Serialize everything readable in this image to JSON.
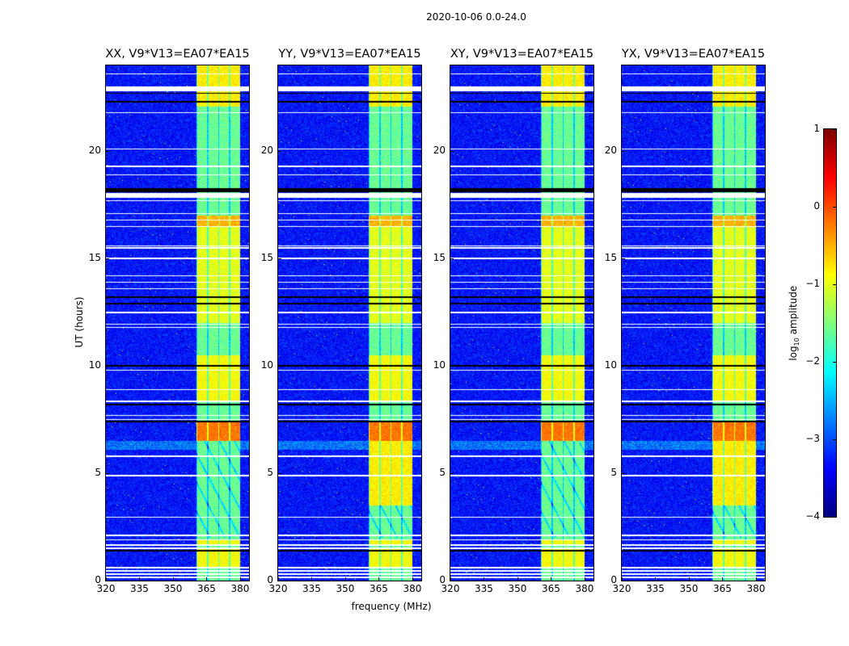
{
  "figure": {
    "suptitle": "2020-10-06 0.0-24.0",
    "xlabel": "frequency (MHz)",
    "ylabel": "UT (hours)",
    "colorbar_label_main": "log",
    "colorbar_label_sub": "10",
    "colorbar_label_rest": " amplitude"
  },
  "chart_data": {
    "type": "heatmap",
    "title": "2020-10-06 0.0-24.0",
    "xlabel": "frequency (MHz)",
    "ylabel": "UT (hours)",
    "xlim": [
      320,
      384
    ],
    "ylim": [
      0,
      24
    ],
    "xticks": [
      "320",
      "335",
      "350",
      "365",
      "380"
    ],
    "xtick_values": [
      320,
      335,
      350,
      365,
      380
    ],
    "yticks": [
      "0",
      "5",
      "10",
      "15",
      "20"
    ],
    "ytick_values": [
      0,
      5,
      10,
      15,
      20
    ],
    "colormap": "jet",
    "colorbar": {
      "label": "log10 amplitude",
      "range": [
        -4,
        1
      ],
      "ticks": [
        "−4",
        "−3",
        "−2",
        "−1",
        "0",
        "1"
      ],
      "tick_values": [
        -4,
        -3,
        -2,
        -1,
        0,
        1
      ]
    },
    "panels": [
      {
        "title": "XX, V9*V13=EA07*EA15",
        "pol": "XX"
      },
      {
        "title": "YY, V9*V13=EA07*EA15",
        "pol": "YY"
      },
      {
        "title": "XY, V9*V13=EA07*EA15",
        "pol": "XY"
      },
      {
        "title": "YX, V9*V13=EA07*EA15",
        "pol": "YX"
      }
    ],
    "background_level": -3.3,
    "band": {
      "freq_range_mhz": [
        360.5,
        380
      ],
      "subbands": 4,
      "level": -1.6
    },
    "band_bright_intervals_ut": [
      [
        0.6,
        1.5,
        -0.9
      ],
      [
        1.65,
        1.9,
        -0.9
      ],
      [
        6.5,
        7.4,
        -0.2
      ],
      [
        8.4,
        10.5,
        -0.9
      ],
      [
        12.0,
        16.5,
        -1.0
      ],
      [
        16.5,
        17.0,
        -0.5
      ],
      [
        22.1,
        24.0,
        -0.8
      ]
    ],
    "flagged_rows_ut": [
      0.15,
      0.3,
      0.45,
      0.6,
      1.5,
      1.65,
      1.9,
      2.1,
      2.95,
      4.9,
      5.8,
      7.5,
      7.7,
      8.35,
      8.9,
      9.8,
      11.8,
      11.95,
      12.5,
      13.6,
      13.9,
      14.2,
      15.0,
      15.5,
      15.6,
      16.5,
      16.8,
      17.1,
      17.7,
      17.95,
      18.9,
      19.3,
      20.1,
      21.8,
      22.9,
      23.6
    ],
    "zero_rows_ut": [
      1.4,
      7.4,
      8.2,
      10.0,
      12.9,
      13.2,
      18.2,
      22.3,
      22.7
    ]
  }
}
